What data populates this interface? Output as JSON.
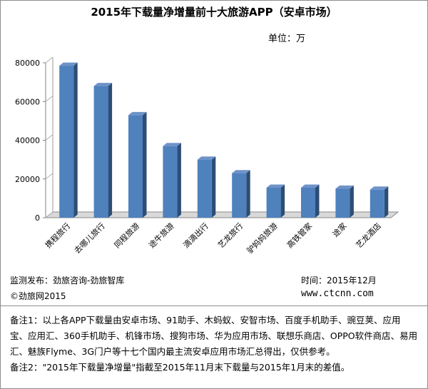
{
  "chart_data": {
    "type": "bar",
    "title": "2015年下载量净增量前十大旅游APP（安卓市场）",
    "unit_label": "单位：万",
    "categories": [
      "携程旅行",
      "去哪儿旅行",
      "同程旅游",
      "途牛旅游",
      "滴滴出行",
      "艺龙旅行",
      "驴妈妈旅游",
      "高铁管家",
      "途家",
      "艺龙酒店"
    ],
    "values": [
      78500,
      68000,
      53000,
      37000,
      30000,
      23000,
      15500,
      15500,
      15000,
      14500
    ],
    "yticks": [
      "80000",
      "60000",
      "40000",
      "20000",
      "0"
    ],
    "ylim": [
      0,
      80000
    ],
    "bar_color": "#4f81bd",
    "grid": false
  },
  "footer": {
    "source": "监测发布：劲旅咨询-劲旅智库",
    "time": "时间：2015年12月",
    "copyright": "©劲旅网2015",
    "website": "www.ctcnn.com"
  },
  "notes": {
    "note1": "备注1：以上各APP下载量由安卓市场、91助手、木蚂蚁、安智市场、百度手机助手、豌豆荚、应用宝、应用汇、360手机助手、机锋市场、搜狗市场、华为应用市场、联想乐商店、OPPO软件商店、易用汇、魅族Flyme、3G门户等十七个国内最主流安卓应用市场汇总得出，仅供参考。",
    "note2": "备注2：\"2015年下载量净增量\"指截至2015年11月末下载量与2015年1月末的差值。"
  }
}
